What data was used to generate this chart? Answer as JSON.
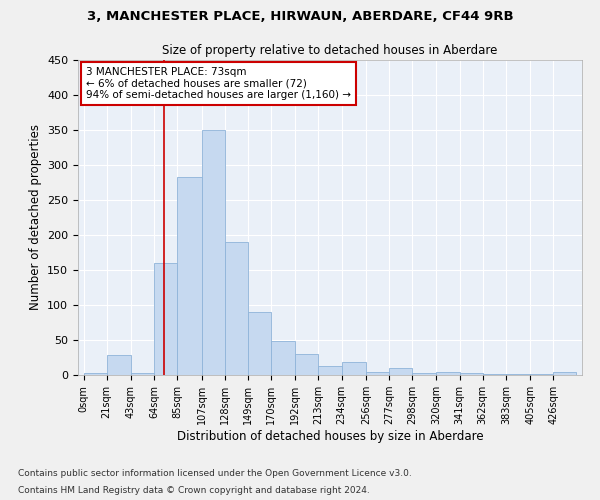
{
  "title1": "3, MANCHESTER PLACE, HIRWAUN, ABERDARE, CF44 9RB",
  "title2": "Size of property relative to detached houses in Aberdare",
  "xlabel": "Distribution of detached houses by size in Aberdare",
  "ylabel": "Number of detached properties",
  "bar_labels": [
    "0sqm",
    "21sqm",
    "43sqm",
    "64sqm",
    "85sqm",
    "107sqm",
    "128sqm",
    "149sqm",
    "170sqm",
    "192sqm",
    "213sqm",
    "234sqm",
    "256sqm",
    "277sqm",
    "298sqm",
    "320sqm",
    "341sqm",
    "362sqm",
    "383sqm",
    "405sqm",
    "426sqm"
  ],
  "bar_values": [
    3,
    28,
    3,
    160,
    283,
    350,
    190,
    90,
    48,
    30,
    13,
    18,
    5,
    10,
    3,
    5,
    3,
    2,
    2,
    2,
    4
  ],
  "bar_color": "#c6d9f0",
  "bar_edge_color": "#8fb4d9",
  "bg_color": "#eaf0f8",
  "grid_color": "#ffffff",
  "fig_bg_color": "#f0f0f0",
  "vline_x": 73,
  "vline_color": "#cc0000",
  "annotation_text": "3 MANCHESTER PLACE: 73sqm\n← 6% of detached houses are smaller (72)\n94% of semi-detached houses are larger (1,160) →",
  "annotation_box_color": "#cc0000",
  "ylim": [
    0,
    450
  ],
  "bin_edges": [
    0,
    21,
    43,
    64,
    85,
    107,
    128,
    149,
    170,
    192,
    213,
    234,
    256,
    277,
    298,
    320,
    341,
    362,
    383,
    405,
    426,
    447
  ],
  "footnote1": "Contains HM Land Registry data © Crown copyright and database right 2024.",
  "footnote2": "Contains public sector information licensed under the Open Government Licence v3.0."
}
